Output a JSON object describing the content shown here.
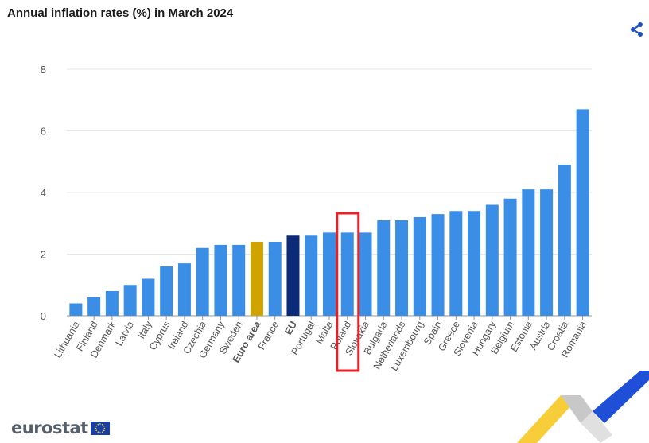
{
  "chart_data": {
    "type": "bar",
    "title": "Annual inflation rates (%) in March 2024",
    "categories": [
      "Lithuania",
      "Finland",
      "Denmark",
      "Latvia",
      "Italy",
      "Cyprus",
      "Ireland",
      "Czechia",
      "Germany",
      "Sweden",
      "Euro area",
      "France",
      "EU",
      "Portugal",
      "Malta",
      "Poland",
      "Slovakia",
      "Bulgaria",
      "Netherlands",
      "Luxembourg",
      "Spain",
      "Greece",
      "Slovenia",
      "Hungary",
      "Belgium",
      "Estonia",
      "Austria",
      "Croatia",
      "Romania"
    ],
    "values": [
      0.4,
      0.6,
      0.8,
      1.0,
      1.2,
      1.6,
      1.7,
      2.2,
      2.3,
      2.3,
      2.4,
      2.4,
      2.6,
      2.6,
      2.7,
      2.7,
      2.7,
      3.1,
      3.1,
      3.2,
      3.3,
      3.4,
      3.4,
      3.6,
      3.8,
      4.1,
      4.1,
      4.9,
      6.7
    ],
    "highlight": {
      "Euro area": "#cfa400",
      "EU": "#0b2a78"
    },
    "bold_categories": [
      "Euro area",
      "EU"
    ],
    "selected_category": "Poland",
    "bar_color": "#3b8ee6",
    "selection_color": "#e8202a",
    "yticks": [
      0,
      2,
      4,
      6,
      8
    ],
    "ylim": [
      0,
      8
    ],
    "grid": true
  },
  "brand": {
    "name": "eurostat"
  },
  "icons": {
    "share": "share-icon",
    "flag": "eu-flag-icon"
  }
}
